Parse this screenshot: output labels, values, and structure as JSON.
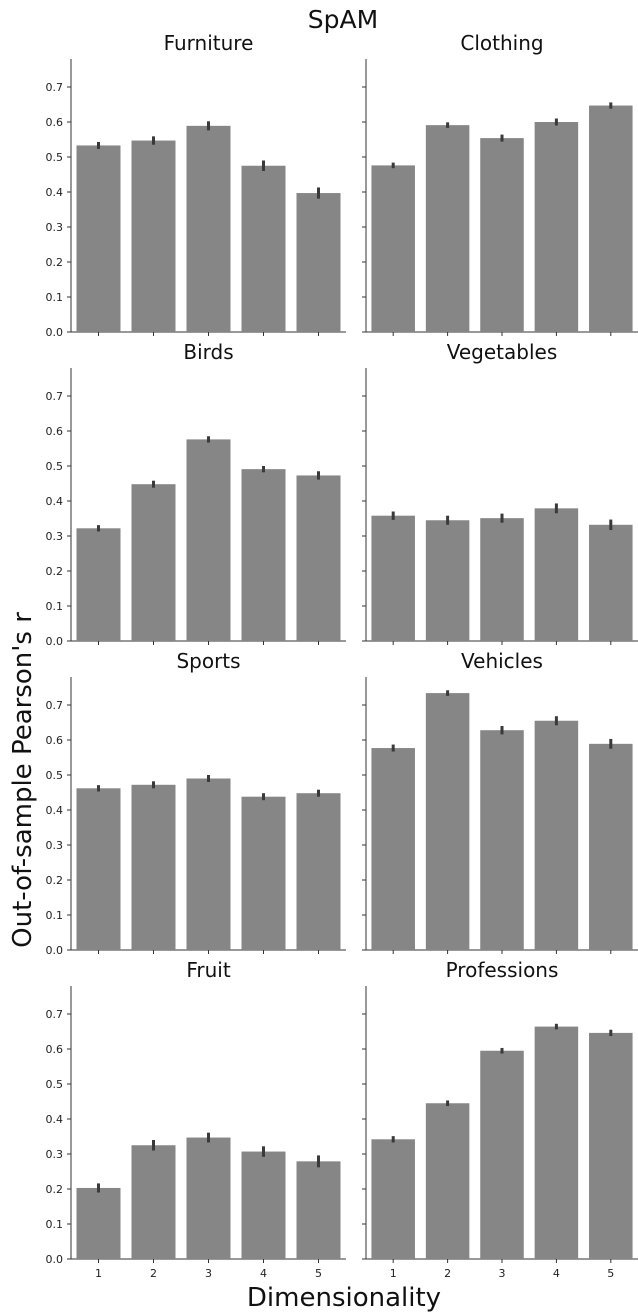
{
  "chart_data": {
    "type": "bar",
    "title": "SpAM",
    "xlabel": "Dimensionality",
    "ylabel": "Out-of-sample Pearson's r",
    "categories": [
      "1",
      "2",
      "3",
      "4",
      "5"
    ],
    "ylim": [
      0,
      0.78
    ],
    "yticks": [
      "0.0",
      "0.1",
      "0.2",
      "0.3",
      "0.4",
      "0.5",
      "0.6",
      "0.7"
    ],
    "bar_color": "#868686",
    "errorbar_color": "#3a3a3a",
    "grid": false,
    "panels": [
      {
        "title": "Furniture",
        "values": [
          0.533,
          0.547,
          0.589,
          0.475,
          0.397
        ],
        "errors": [
          0.01,
          0.012,
          0.013,
          0.015,
          0.016
        ]
      },
      {
        "title": "Clothing",
        "values": [
          0.476,
          0.591,
          0.554,
          0.6,
          0.647
        ],
        "errors": [
          0.008,
          0.008,
          0.01,
          0.01,
          0.009
        ]
      },
      {
        "title": "Birds",
        "values": [
          0.322,
          0.448,
          0.576,
          0.491,
          0.473
        ],
        "errors": [
          0.009,
          0.01,
          0.009,
          0.009,
          0.012
        ]
      },
      {
        "title": "Vegetables",
        "values": [
          0.358,
          0.345,
          0.351,
          0.379,
          0.332
        ],
        "errors": [
          0.012,
          0.013,
          0.013,
          0.014,
          0.015
        ]
      },
      {
        "title": "Sports",
        "values": [
          0.462,
          0.472,
          0.49,
          0.438,
          0.448
        ],
        "errors": [
          0.009,
          0.01,
          0.01,
          0.01,
          0.01
        ]
      },
      {
        "title": "Vehicles",
        "values": [
          0.577,
          0.734,
          0.628,
          0.655,
          0.589
        ],
        "errors": [
          0.01,
          0.008,
          0.012,
          0.013,
          0.014
        ]
      },
      {
        "title": "Fruit",
        "values": [
          0.203,
          0.325,
          0.347,
          0.307,
          0.279
        ],
        "errors": [
          0.013,
          0.015,
          0.014,
          0.015,
          0.017
        ]
      },
      {
        "title": "Professions",
        "values": [
          0.342,
          0.445,
          0.595,
          0.664,
          0.646
        ],
        "errors": [
          0.009,
          0.008,
          0.008,
          0.008,
          0.009
        ]
      }
    ]
  }
}
